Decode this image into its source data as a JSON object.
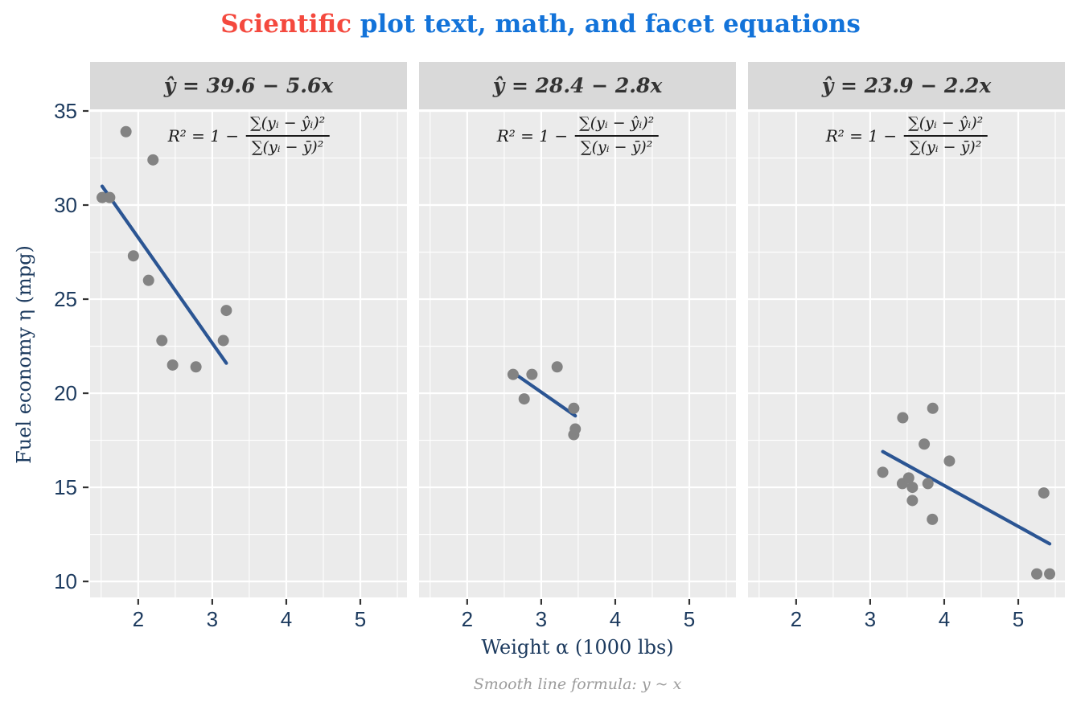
{
  "title": {
    "part1": "Scientific",
    "part2": " plot text, math, and facet equations"
  },
  "annotation": {
    "lead": "R² = 1 −",
    "numerator": "∑(yᵢ − ŷᵢ)²",
    "denominator": "∑(yᵢ − ȳ)²"
  },
  "colors": {
    "red": "#F4493E",
    "blue": "#1373D9",
    "axis_text": "#1C3A5E",
    "strip_bg": "#D9D9D9",
    "panel_bg": "#EBEBEB",
    "grid": "#FFFFFF",
    "point": "#838383",
    "line": "#2B5593",
    "caption": "#9C9C9C",
    "tick_mark": "#333333"
  },
  "chart_data": {
    "type": "scatter",
    "title": "Scientific plot text, math, and facet equations",
    "xlabel": "Weight α (1000 lbs)",
    "ylabel": "Fuel economy η (mpg)",
    "caption": "Smooth line formula: y ~ x",
    "grid": true,
    "legend": false,
    "xlim": [
      1.35,
      5.63
    ],
    "ylim": [
      9.15,
      35.0
    ],
    "x_major_ticks": [
      2,
      3,
      4,
      5
    ],
    "x_minor_ticks": [
      1.5,
      2.5,
      3.5,
      4.5,
      5.5
    ],
    "y_major_ticks": [
      10,
      15,
      20,
      25,
      30,
      35
    ],
    "y_minor_ticks": [
      12.5,
      17.5,
      22.5,
      27.5,
      32.5
    ],
    "facets": [
      {
        "strip_equation": "ŷ = 39.6 − 5.6x",
        "regression": {
          "intercept": 39.6,
          "slope": -5.6
        },
        "smooth_line": {
          "x": [
            1.513,
            3.19
          ],
          "y": [
            31.0,
            21.6
          ]
        },
        "points": [
          [
            1.513,
            30.4
          ],
          [
            1.615,
            30.4
          ],
          [
            1.835,
            33.9
          ],
          [
            1.935,
            27.3
          ],
          [
            2.14,
            26.0
          ],
          [
            2.2,
            32.4
          ],
          [
            2.32,
            22.8
          ],
          [
            2.465,
            21.5
          ],
          [
            2.78,
            21.4
          ],
          [
            3.15,
            22.8
          ],
          [
            3.19,
            24.4
          ]
        ]
      },
      {
        "strip_equation": "ŷ = 28.4 − 2.8x",
        "regression": {
          "intercept": 28.4,
          "slope": -2.8
        },
        "smooth_line": {
          "x": [
            2.62,
            3.46
          ],
          "y": [
            21.1,
            18.8
          ]
        },
        "points": [
          [
            2.62,
            21.0
          ],
          [
            2.77,
            19.7
          ],
          [
            2.875,
            21.0
          ],
          [
            3.215,
            21.4
          ],
          [
            3.44,
            19.2
          ],
          [
            3.44,
            17.8
          ],
          [
            3.46,
            18.1
          ]
        ]
      },
      {
        "strip_equation": "ŷ = 23.9 − 2.2x",
        "regression": {
          "intercept": 23.9,
          "slope": -2.2
        },
        "smooth_line": {
          "x": [
            3.17,
            5.424
          ],
          "y": [
            16.9,
            12.0
          ]
        },
        "points": [
          [
            3.17,
            15.8
          ],
          [
            3.435,
            15.2
          ],
          [
            3.44,
            18.7
          ],
          [
            3.52,
            15.5
          ],
          [
            3.57,
            14.3
          ],
          [
            3.57,
            15.0
          ],
          [
            3.73,
            17.3
          ],
          [
            3.78,
            15.2
          ],
          [
            3.84,
            13.3
          ],
          [
            3.845,
            19.2
          ],
          [
            4.07,
            16.4
          ],
          [
            5.25,
            10.4
          ],
          [
            5.345,
            14.7
          ],
          [
            5.424,
            10.4
          ]
        ]
      }
    ]
  }
}
